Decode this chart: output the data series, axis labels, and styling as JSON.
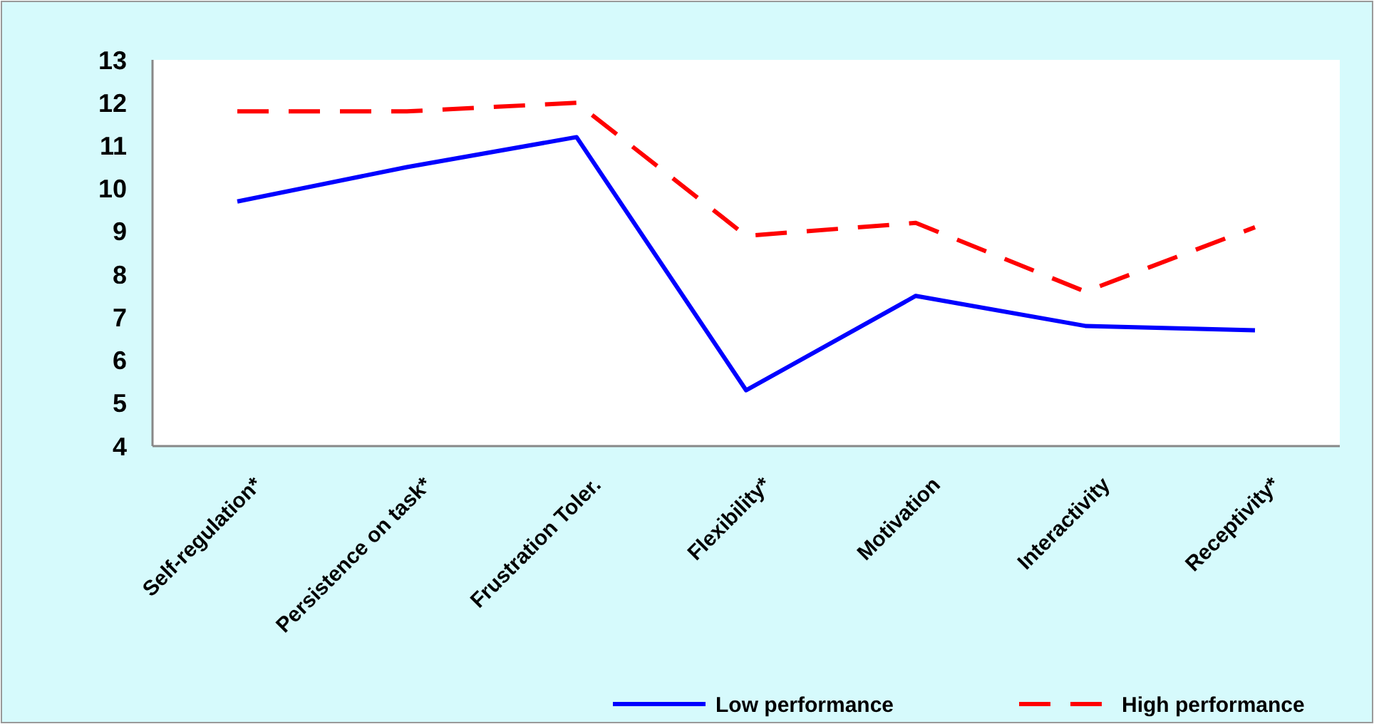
{
  "chart_data": {
    "type": "line",
    "categories": [
      "Self-regulation*",
      "Persistence on task*",
      "Frustration Toler.",
      "Flexibility*",
      "Motivation",
      "Interactivity",
      "Receptivity*"
    ],
    "series": [
      {
        "name": "Low performance",
        "color": "#0000ff",
        "line_style": "solid",
        "values": [
          9.7,
          10.5,
          11.2,
          5.3,
          7.5,
          6.8,
          6.7
        ]
      },
      {
        "name": "High performance",
        "color": "#ff0000",
        "line_style": "dashed",
        "values": [
          11.8,
          11.8,
          12.0,
          8.9,
          9.2,
          7.6,
          9.1
        ]
      }
    ],
    "ylim": [
      4,
      13
    ],
    "yticks": [
      4,
      5,
      6,
      7,
      8,
      9,
      10,
      11,
      12,
      13
    ],
    "grid": false,
    "legend": "bottom",
    "marker": "none"
  }
}
